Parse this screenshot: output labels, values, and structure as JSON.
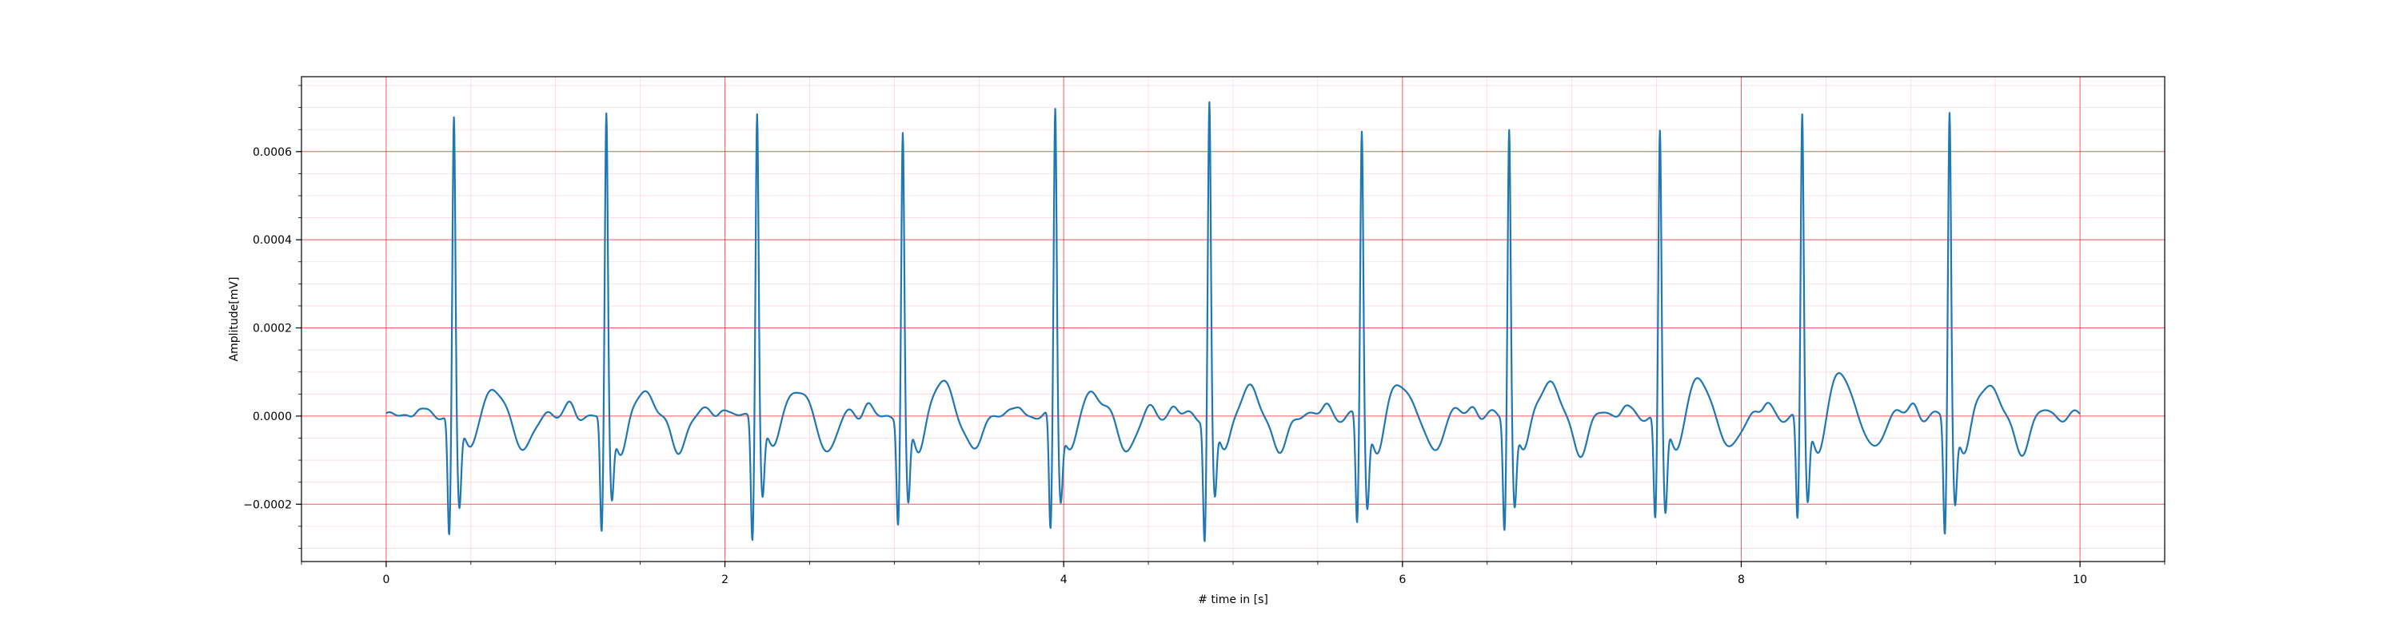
{
  "chart_data": {
    "type": "line",
    "title": "",
    "xlabel": "# time in [s]",
    "ylabel": "Amplitude[mV]",
    "xlim": [
      -0.5,
      10.5
    ],
    "ylim": [
      -0.00033,
      0.00077
    ],
    "x_ticks": [
      0,
      2,
      4,
      6,
      8,
      10
    ],
    "x_tick_labels": [
      "0",
      "2",
      "4",
      "6",
      "8",
      "10"
    ],
    "y_ticks": [
      -0.0002,
      0.0,
      0.0002,
      0.0004,
      0.0006
    ],
    "y_tick_labels": [
      "−0.0002",
      "0.0000",
      "0.0002",
      "0.0004",
      "0.0006"
    ],
    "grid": true,
    "major_grid_color": "#ff0000",
    "minor_grid_color": "#ffb6c1",
    "line_color": "#1f77b4",
    "series": [
      {
        "beats": [
          {
            "r_time": 0.4,
            "r_amp": 0.00069,
            "q_amp": -0.00027,
            "s_amp": -0.00019
          },
          {
            "r_time": 1.3,
            "r_amp": 0.000685,
            "q_amp": -0.00027,
            "s_amp": -0.00017
          },
          {
            "r_time": 2.19,
            "r_amp": 0.000705,
            "q_amp": -0.00028,
            "s_amp": -0.00016
          },
          {
            "r_time": 3.05,
            "r_amp": 0.00065,
            "q_amp": -0.00024,
            "s_amp": -0.00019
          },
          {
            "r_time": 3.95,
            "r_amp": 0.000705,
            "q_amp": -0.00027,
            "s_amp": -0.000165
          },
          {
            "r_time": 4.86,
            "r_amp": 0.000715,
            "q_amp": -0.00028,
            "s_amp": -0.00017
          },
          {
            "r_time": 5.76,
            "r_amp": 0.000655,
            "q_amp": -0.00025,
            "s_amp": -0.00019
          },
          {
            "r_time": 6.63,
            "r_amp": 0.00066,
            "q_amp": -0.000255,
            "s_amp": -0.000185
          },
          {
            "r_time": 7.52,
            "r_amp": 0.000655,
            "q_amp": -0.000235,
            "s_amp": -0.000205
          },
          {
            "r_time": 8.36,
            "r_amp": 0.00069,
            "q_amp": -0.00024,
            "s_amp": -0.00018
          },
          {
            "r_time": 9.23,
            "r_amp": 0.000695,
            "q_amp": -0.00027,
            "s_amp": -0.00018
          }
        ],
        "t_wave_amp": [
          5.5e-05,
          5.5e-05,
          6e-05,
          7.5e-05,
          5.5e-05,
          6e-05,
          7.5e-05,
          8e-05,
          8e-05,
          9.5e-05,
          7.5e-05
        ],
        "x_range": [
          0,
          10
        ]
      }
    ]
  }
}
